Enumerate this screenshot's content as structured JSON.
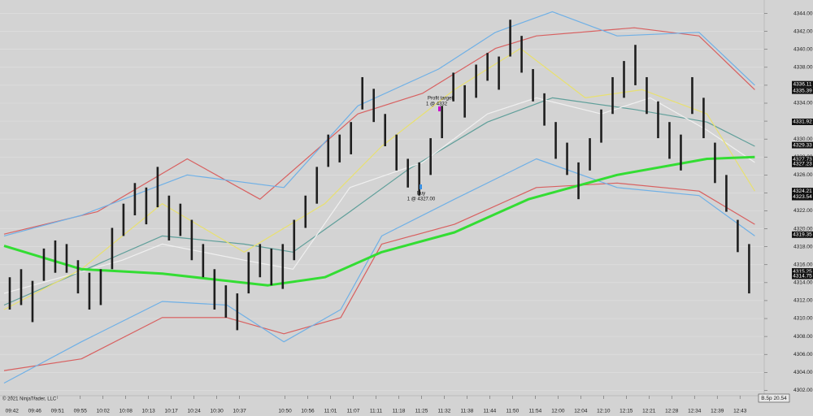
{
  "chart_data": {
    "type": "range-bar",
    "bars": {
      "high": [
        4314.6,
        4315.5,
        4314.2,
        4317.8,
        4318.7,
        4318.3,
        4316.5,
        4315.1,
        4315.5,
        4320.1,
        4322.8,
        4325.1,
        4324.6,
        4326.9,
        4323.7,
        4322.8,
        4321.0,
        4318.3,
        4315.5,
        4313.7,
        4312.8,
        4317.4,
        4318.3,
        4317.8,
        4318.3,
        4321.0,
        4323.7,
        4326.9,
        4330.5,
        4330.5,
        4331.9,
        4336.9,
        4335.6,
        4332.8,
        4330.5,
        4327.8,
        4327.4,
        4330.1,
        4333.7,
        4337.4,
        4336.0,
        4338.3,
        4339.6,
        4339.2,
        4343.3,
        4341.5,
        4337.8,
        4335.1,
        4331.9,
        4329.6,
        4327.4,
        4330.1,
        4333.3,
        4336.9,
        4338.7,
        4340.5,
        4336.9,
        4334.2,
        4331.9,
        4330.5,
        4336.9,
        4334.6,
        4329.6,
        4326.0,
        4321.0,
        4318.3
      ],
      "low": [
        4311.0,
        4311.5,
        4309.6,
        4314.2,
        4315.1,
        4315.1,
        4312.8,
        4311.0,
        4311.5,
        4315.5,
        4319.2,
        4321.5,
        4320.5,
        4322.4,
        4318.7,
        4319.2,
        4316.5,
        4314.6,
        4311.0,
        4310.1,
        4308.7,
        4312.8,
        4314.6,
        4313.7,
        4313.3,
        4316.5,
        4320.1,
        4322.8,
        4326.9,
        4327.4,
        4328.3,
        4333.3,
        4331.9,
        4329.2,
        4326.5,
        4324.6,
        4323.7,
        4326.0,
        4330.1,
        4334.2,
        4332.4,
        4334.6,
        4336.5,
        4335.5,
        4339.2,
        4337.4,
        4334.2,
        4331.5,
        4327.8,
        4326.0,
        4323.3,
        4326.5,
        4329.6,
        4332.8,
        4334.6,
        4336.0,
        4332.8,
        4330.1,
        4327.8,
        4326.5,
        4332.8,
        4330.1,
        4325.1,
        4321.9,
        4317.4,
        4312.8
      ]
    },
    "lines": [
      {
        "color": "#d86060",
        "x": [
          0,
          8.2,
          16.1,
          22.5,
          31.1,
          36.8,
          43.2,
          46.8,
          55.4,
          61.1,
          66
        ],
        "values": [
          4319.4,
          4321.9,
          4327.8,
          4323.3,
          4332.8,
          4335.1,
          4340.1,
          4341.5,
          4342.4,
          4341.5,
          4335.5
        ]
      },
      {
        "color": "#6fb0e6",
        "x": [
          0,
          6.8,
          16.1,
          24.6,
          31.1,
          38.2,
          43.2,
          48.2,
          53.9,
          61.1,
          66
        ],
        "values": [
          4319.2,
          4321.5,
          4326.0,
          4324.6,
          4333.7,
          4337.8,
          4341.9,
          4344.2,
          4341.5,
          4341.9,
          4336.0
        ]
      },
      {
        "color": "#5f9f9a",
        "x": [
          0,
          13.9,
          21.1,
          25.4,
          30.4,
          35.4,
          42.5,
          48.2,
          55.4,
          61.8,
          66
        ],
        "values": [
          4311.5,
          4319.2,
          4318.3,
          4317.4,
          4321.9,
          4326.5,
          4331.9,
          4334.6,
          4333.3,
          4331.9,
          4329.2
        ]
      },
      {
        "color": "#f0f0f0",
        "x": [
          0,
          10.4,
          13.9,
          21.1,
          25.4,
          30.4,
          36.8,
          42.5,
          46.8,
          52.5,
          56.8,
          61.8,
          66
        ],
        "values": [
          4312.8,
          4316.5,
          4318.3,
          4316.5,
          4315.5,
          4324.6,
          4327.4,
          4332.8,
          4334.6,
          4332.8,
          4334.6,
          4331.0,
          4327.4
        ]
      },
      {
        "color": "#e8e070",
        "x": [
          0,
          6.8,
          13.9,
          21.1,
          28.2,
          33.2,
          39.6,
          45.4,
          51.1,
          56.1,
          61.8,
          66
        ],
        "values": [
          4311.0,
          4315.5,
          4322.8,
          4317.4,
          4322.8,
          4329.2,
          4335.5,
          4340.1,
          4334.6,
          4335.5,
          4332.8,
          4324.2
        ]
      },
      {
        "color": "#d86060",
        "x": [
          0,
          6.8,
          13.9,
          19.6,
          24.6,
          29.6,
          33.2,
          39.6,
          46.8,
          53.9,
          61.1,
          66
        ],
        "values": [
          4304.2,
          4305.5,
          4310.1,
          4310.1,
          4308.3,
          4310.1,
          4318.3,
          4320.5,
          4324.6,
          4325.1,
          4324.2,
          4320.5
        ]
      },
      {
        "color": "#6fb0e6",
        "x": [
          0,
          6.8,
          13.9,
          19.6,
          24.6,
          29.6,
          33.2,
          39.6,
          46.8,
          53.9,
          61.1,
          66
        ],
        "values": [
          4302.8,
          4307.4,
          4311.9,
          4311.5,
          4307.4,
          4311.0,
          4319.2,
          4323.3,
          4327.8,
          4324.6,
          4323.7,
          4319.2
        ]
      },
      {
        "color": "#33dd33",
        "width": 3,
        "x": [
          0,
          6.8,
          13.9,
          23.2,
          28.2,
          33.2,
          39.6,
          46.1,
          53.9,
          61.8,
          66
        ],
        "values": [
          4318.1,
          4315.5,
          4315.0,
          4313.7,
          4314.6,
          4317.4,
          4319.6,
          4323.3,
          4326.0,
          4327.8,
          4328.0
        ]
      }
    ],
    "ylim": [
      4301.4,
      4345.5
    ],
    "yticks": [
      {
        "value": 4302,
        "label": "4302.00"
      },
      {
        "value": 4304,
        "label": "4304.00"
      },
      {
        "value": 4306,
        "label": "4306.00"
      },
      {
        "value": 4308,
        "label": "4308.00"
      },
      {
        "value": 4310,
        "label": "4310.00"
      },
      {
        "value": 4312,
        "label": "4312.00"
      },
      {
        "value": 4314,
        "label": "4314.00"
      },
      {
        "value": 4316,
        "label": "4316.00"
      },
      {
        "value": 4318,
        "label": "4318.00"
      },
      {
        "value": 4320,
        "label": "4320.00"
      },
      {
        "value": 4322,
        "label": "4322.00"
      },
      {
        "value": 4324,
        "label": "4324.00"
      },
      {
        "value": 4326,
        "label": "4326.00"
      },
      {
        "value": 4328,
        "label": "4328.00"
      },
      {
        "value": 4330,
        "label": "4330.00"
      },
      {
        "value": 4332,
        "label": "4332.00"
      },
      {
        "value": 4334,
        "label": "4334.00"
      },
      {
        "value": 4336,
        "label": "4336.00"
      },
      {
        "value": 4338,
        "label": "4338.00"
      },
      {
        "value": 4340,
        "label": "4340.00"
      },
      {
        "value": 4342,
        "label": "4342.00"
      },
      {
        "value": 4344,
        "label": "4344.00"
      }
    ],
    "xlim": [
      0,
      66.4
    ],
    "xticks": [
      {
        "value": 0.7,
        "label": "09:42"
      },
      {
        "value": 2.7,
        "label": "09:46"
      },
      {
        "value": 4.7,
        "label": "09:51"
      },
      {
        "value": 6.7,
        "label": "09:55"
      },
      {
        "value": 8.7,
        "label": "10:02"
      },
      {
        "value": 10.7,
        "label": "10:08"
      },
      {
        "value": 12.7,
        "label": "10:13"
      },
      {
        "value": 14.7,
        "label": "10:17"
      },
      {
        "value": 16.7,
        "label": "10:24"
      },
      {
        "value": 18.7,
        "label": "10:30"
      },
      {
        "value": 20.7,
        "label": "10:37"
      },
      {
        "value": 24.7,
        "label": "10:50"
      },
      {
        "value": 26.7,
        "label": "10:56"
      },
      {
        "value": 28.7,
        "label": "11:01"
      },
      {
        "value": 30.7,
        "label": "11:07"
      },
      {
        "value": 32.7,
        "label": "11:11"
      },
      {
        "value": 34.7,
        "label": "11:18"
      },
      {
        "value": 36.7,
        "label": "11:25"
      },
      {
        "value": 38.7,
        "label": "11:32"
      },
      {
        "value": 40.7,
        "label": "11:38"
      },
      {
        "value": 42.7,
        "label": "11:44"
      },
      {
        "value": 44.7,
        "label": "11:50"
      },
      {
        "value": 46.7,
        "label": "11:54"
      },
      {
        "value": 48.7,
        "label": "12:00"
      },
      {
        "value": 50.7,
        "label": "12:04"
      },
      {
        "value": 52.7,
        "label": "12:10"
      },
      {
        "value": 54.7,
        "label": "12:15"
      },
      {
        "value": 56.7,
        "label": "12:21"
      },
      {
        "value": 58.7,
        "label": "12:28"
      },
      {
        "value": 60.7,
        "label": "12:34"
      },
      {
        "value": 62.7,
        "label": "12:39"
      },
      {
        "value": 64.7,
        "label": "12:43"
      }
    ],
    "price_markers": [
      4336.11,
      4335.39,
      4331.92,
      4329.33,
      4327.73,
      4327.23,
      4324.21,
      4323.54,
      4319.35,
      4315.25,
      4314.75
    ],
    "grid": true,
    "annotations": {
      "profit_target": {
        "label": "Profit target",
        "order": "1 @ 4332"
      },
      "buy": {
        "label": "Buy",
        "order": "1 @ 4327.00"
      }
    },
    "copyright": "© 2021 NinjaTrader, LLC",
    "status": "B.5p 20.54"
  }
}
